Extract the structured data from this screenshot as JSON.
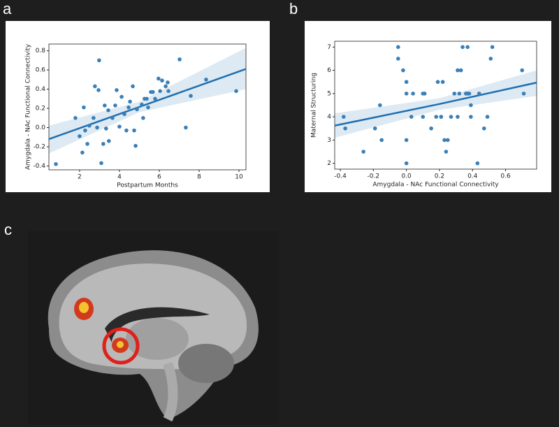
{
  "panel_labels": [
    "a",
    "b",
    "c"
  ],
  "chart_data": [
    {
      "type": "scatter",
      "color": "#3a7fb8",
      "xlabel": "Postpartum Months",
      "ylabel": "Amygdala - NAc Functional Connectivity",
      "xlim": [
        0.46,
        10.35
      ],
      "ylim": [
        -0.44,
        0.87
      ],
      "xticks": [
        2,
        4,
        6,
        8,
        10
      ],
      "yticks": [
        -0.4,
        -0.2,
        {
          "value": 0,
          "label": "0.0"
        },
        0.2,
        0.4,
        0.6,
        0.8
      ],
      "x": [
        0.81,
        1.79,
        2.0,
        2.14,
        2.21,
        2.28,
        2.39,
        2.49,
        2.7,
        2.77,
        2.88,
        2.95,
        2.98,
        3.09,
        3.19,
        3.26,
        3.33,
        3.44,
        3.47,
        3.65,
        3.79,
        3.86,
        4.0,
        4.11,
        4.25,
        4.35,
        4.46,
        4.53,
        4.67,
        4.74,
        4.81,
        4.88,
        5.12,
        5.19,
        5.26,
        5.37,
        5.44,
        5.58,
        5.68,
        5.79,
        5.96,
        6.04,
        6.14,
        6.32,
        6.42,
        6.46,
        7.02,
        7.33,
        7.58,
        8.35,
        9.86
      ],
      "values": [
        -0.38,
        0.1,
        -0.09,
        -0.26,
        0.21,
        -0.03,
        -0.17,
        0.02,
        0.1,
        0.43,
        0.0,
        0.39,
        0.7,
        -0.37,
        -0.17,
        0.23,
        -0.01,
        0.18,
        -0.14,
        0.1,
        0.23,
        0.39,
        0.01,
        0.32,
        0.14,
        -0.03,
        0.21,
        0.27,
        0.43,
        -0.03,
        -0.19,
        0.19,
        0.24,
        0.1,
        0.3,
        0.3,
        0.21,
        0.37,
        0.37,
        0.3,
        0.51,
        0.38,
        0.49,
        0.43,
        0.47,
        0.38,
        0.71,
        0.0,
        0.33,
        0.5,
        0.38
      ],
      "fit": {
        "color": "#1f6fb0",
        "x": [
          0.46,
          5.0,
          10.35
        ],
        "y": [
          -0.12,
          0.215,
          0.61
        ],
        "ci_lower": [
          -0.27,
          0.16,
          0.4
        ],
        "ci_upper": [
          0.02,
          0.27,
          0.83
        ]
      }
    },
    {
      "type": "scatter",
      "color": "#3a7fb8",
      "xlabel": "Amygdala - NAc Functional Connectivity",
      "ylabel": "Maternal Structuring",
      "xlim": [
        -0.434,
        0.788
      ],
      "ylim": [
        1.75,
        7.25
      ],
      "xticks": [
        -0.4,
        -0.2,
        {
          "value": 0,
          "label": "0.0"
        },
        0.2,
        0.4,
        0.6
      ],
      "yticks": [
        2,
        3,
        4,
        5,
        6,
        7
      ],
      "x": [
        -0.38,
        -0.37,
        -0.26,
        -0.19,
        -0.16,
        -0.15,
        -0.05,
        -0.05,
        -0.02,
        0.0,
        0.0,
        0.0,
        0.0,
        0.03,
        0.04,
        0.1,
        0.1,
        0.11,
        0.15,
        0.18,
        0.19,
        0.21,
        0.22,
        0.21,
        0.23,
        0.24,
        0.25,
        0.27,
        0.29,
        0.31,
        0.31,
        0.32,
        0.33,
        0.34,
        0.36,
        0.37,
        0.37,
        0.38,
        0.39,
        0.39,
        0.43,
        0.44,
        0.47,
        0.49,
        0.51,
        0.52,
        0.7,
        0.71
      ],
      "values": [
        4.0,
        3.5,
        2.5,
        3.5,
        4.5,
        3.0,
        7.0,
        6.5,
        6.0,
        5.5,
        5.0,
        3.0,
        2.0,
        4.0,
        5.0,
        4.0,
        5.0,
        5.0,
        3.5,
        4.0,
        5.5,
        4.0,
        5.5,
        4.0,
        3.0,
        2.5,
        3.0,
        4.0,
        5.0,
        6.0,
        4.0,
        5.0,
        6.0,
        7.0,
        5.0,
        7.0,
        5.0,
        5.0,
        4.5,
        4.0,
        2.0,
        5.0,
        3.5,
        4.0,
        6.5,
        7.0,
        6.0,
        5.0
      ],
      "fit": {
        "color": "#1f6fb0",
        "x": [
          -0.434,
          0.2,
          0.788
        ],
        "y": [
          3.62,
          4.55,
          5.47
        ],
        "ci_lower": [
          3.1,
          4.3,
          4.9
        ],
        "ci_upper": [
          4.15,
          4.8,
          6.0
        ]
      }
    }
  ]
}
